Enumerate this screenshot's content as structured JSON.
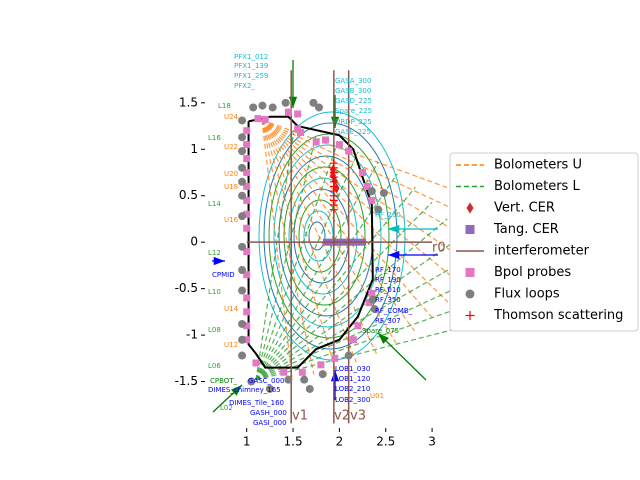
{
  "chart_data": {
    "type": "scatter",
    "xlim": [
      0.55,
      3.15
    ],
    "ylim": [
      -2.0,
      2.09
    ],
    "xticks": [
      1.0,
      1.5,
      2.0,
      2.5,
      3.0
    ],
    "yticks": [
      -1.5,
      -1.0,
      -0.5,
      0.0,
      0.5,
      1.0,
      1.5
    ],
    "wall": {
      "x": [
        1.02,
        1.25,
        1.45,
        1.55,
        2.0,
        2.15,
        2.35,
        2.36,
        2.2,
        2.0,
        1.75,
        1.55,
        1.35,
        1.2,
        1.1,
        1.02,
        1.02
      ],
      "y": [
        1.3,
        1.35,
        1.35,
        1.25,
        1.15,
        1.0,
        0.4,
        -0.4,
        -0.8,
        -1.05,
        -1.15,
        -1.35,
        -1.35,
        -1.35,
        -1.2,
        -1.1,
        1.3
      ]
    },
    "series": [
      {
        "name": "Bolometers U",
        "color": "#ff7f0e",
        "marker": "dashed"
      },
      {
        "name": "Bolometers L",
        "color": "#2ca02c",
        "marker": "dashed"
      },
      {
        "name": "Vert. CER",
        "color": "#d62728",
        "marker": "diamond",
        "x": [
          1.93,
          1.93,
          1.95,
          1.97
        ],
        "y": [
          0.78,
          0.72,
          0.66,
          0.58
        ]
      },
      {
        "name": "Tang. CER",
        "color": "#9467bd",
        "marker": "square",
        "x": [
          1.86,
          1.92,
          1.98,
          2.05,
          2.12,
          2.18,
          2.25
        ],
        "y": [
          0,
          0,
          0,
          0,
          0,
          0,
          0
        ]
      },
      {
        "name": "interferometer",
        "color": "#8c564b",
        "marker": "line",
        "x": [
          1.48,
          1.94,
          2.1,
          1.0
        ],
        "y": [
          1.85,
          1.85,
          1.85,
          0
        ],
        "x2": [
          1.48,
          1.94,
          2.1,
          3.0
        ],
        "y2": [
          -1.95,
          -1.95,
          -1.95,
          0
        ]
      },
      {
        "name": "Bpol probes",
        "color": "#e377c2",
        "marker": "square",
        "x": [
          1.0,
          1.0,
          1.0,
          1.0,
          1.0,
          1.0,
          1.0,
          1.0,
          1.0,
          1.0,
          1.0,
          1.0,
          1.0,
          1.0,
          1.12,
          1.2,
          1.45,
          1.55,
          1.55,
          1.58,
          1.75,
          1.85,
          2.0,
          2.1,
          2.25,
          2.3,
          2.35,
          2.35,
          2.32,
          2.2,
          2.15,
          1.95,
          1.8,
          1.6,
          1.4,
          1.1
        ],
        "y": [
          1.2,
          1.05,
          0.9,
          0.75,
          0.6,
          0.45,
          0.3,
          0.15,
          -0.1,
          -0.35,
          -0.6,
          -0.75,
          -0.9,
          -1.05,
          1.33,
          1.32,
          1.4,
          1.38,
          1.22,
          1.18,
          1.08,
          1.1,
          1.05,
          0.98,
          0.75,
          0.6,
          0.45,
          -0.55,
          -0.65,
          -0.9,
          -1.05,
          -1.25,
          -1.32,
          -1.4,
          -1.4,
          -1.3
        ]
      },
      {
        "name": "Flux loops",
        "color": "#7f7f7f",
        "marker": "circle",
        "x": [
          0.95,
          0.95,
          0.95,
          0.95,
          0.95,
          0.95,
          0.95,
          0.95,
          0.95,
          0.95,
          0.95,
          0.95,
          0.95,
          1.07,
          1.17,
          1.28,
          1.42,
          1.72,
          1.78,
          2.35,
          2.48,
          2.42,
          1.05,
          1.25,
          1.45,
          1.62,
          1.68,
          1.82,
          2.1,
          2.36,
          2.38
        ],
        "y": [
          1.31,
          1.13,
          0.98,
          0.8,
          0.65,
          0.5,
          0.28,
          -0.05,
          -0.3,
          -0.52,
          -0.88,
          -1.05,
          -1.22,
          1.45,
          1.47,
          1.45,
          1.5,
          1.5,
          1.45,
          0.55,
          0.53,
          0.35,
          -1.5,
          -1.58,
          -1.48,
          -1.48,
          -1.58,
          -1.42,
          -1.22,
          -0.62,
          -0.72
        ]
      },
      {
        "name": "Thomson scattering",
        "color": "#ff0000",
        "marker": "plus",
        "x": [
          1.94,
          1.94,
          1.94,
          1.94,
          1.94,
          1.94,
          1.94,
          1.94,
          1.94,
          1.94,
          1.94
        ],
        "y": [
          0.35,
          0.4,
          0.45,
          0.5,
          0.55,
          0.6,
          0.65,
          0.7,
          0.75,
          0.8,
          0.85
        ]
      }
    ],
    "chord_labels": [
      {
        "text": "v1",
        "color": "#8c564b"
      },
      {
        "text": "v2",
        "color": "#8c564b"
      },
      {
        "text": "v3",
        "color": "#8c564b"
      },
      {
        "text": "r0",
        "color": "#8c564b"
      }
    ],
    "annotations": [
      {
        "text": "PFX1_012",
        "color": "#17becf"
      },
      {
        "text": "PFX1_139",
        "color": "#17becf"
      },
      {
        "text": "PFX1_259",
        "color": "#17becf"
      },
      {
        "text": "PFX2_",
        "color": "#17becf"
      },
      {
        "text": "GASA_300",
        "color": "#17becf"
      },
      {
        "text": "GASB_300",
        "color": "#17becf"
      },
      {
        "text": "GASD_225",
        "color": "#17becf"
      },
      {
        "text": "Spare_225",
        "color": "#17becf"
      },
      {
        "text": "DRDP_225",
        "color": "#17becf"
      },
      {
        "text": "GASE_225",
        "color": "#17becf"
      },
      {
        "text": "RF_260",
        "color": "#17becf"
      },
      {
        "text": "RF_170",
        "color": "#0000ff"
      },
      {
        "text": "RF_190",
        "color": "#0000ff"
      },
      {
        "text": "RF_010",
        "color": "#0000ff"
      },
      {
        "text": "RF_350",
        "color": "#0000ff"
      },
      {
        "text": "RF_COMB_",
        "color": "#0000ff"
      },
      {
        "text": "RF_307",
        "color": "#0000ff"
      },
      {
        "text": "Spare_075",
        "color": "#008000"
      },
      {
        "text": "LOB1_030",
        "color": "#0000ff"
      },
      {
        "text": "LOB1_120",
        "color": "#0000ff"
      },
      {
        "text": "LOB2_210",
        "color": "#0000ff"
      },
      {
        "text": "LOB2_300",
        "color": "#0000ff"
      },
      {
        "text": "GASC_000",
        "color": "#0000ff"
      },
      {
        "text": "DIMES_chimney_165",
        "color": "#0000ff"
      },
      {
        "text": "DIMES_Tile_160",
        "color": "#0000ff"
      },
      {
        "text": "GASH_000",
        "color": "#0000ff"
      },
      {
        "text": "GASI_000",
        "color": "#0000ff"
      },
      {
        "text": "CPBOT_",
        "color": "#008000"
      },
      {
        "text": "CPMID",
        "color": "#0000ff"
      },
      {
        "text": "L18",
        "color": "#2ca02c"
      },
      {
        "text": "L16",
        "color": "#2ca02c"
      },
      {
        "text": "L14",
        "color": "#2ca02c"
      },
      {
        "text": "L12",
        "color": "#2ca02c"
      },
      {
        "text": "L10",
        "color": "#2ca02c"
      },
      {
        "text": "L08",
        "color": "#2ca02c"
      },
      {
        "text": "L06",
        "color": "#2ca02c"
      },
      {
        "text": "L02",
        "color": "#2ca02c"
      },
      {
        "text": "U24",
        "color": "#ff7f0e"
      },
      {
        "text": "U22",
        "color": "#ff7f0e"
      },
      {
        "text": "U20",
        "color": "#ff7f0e"
      },
      {
        "text": "U18",
        "color": "#ff7f0e"
      },
      {
        "text": "U16",
        "color": "#ff7f0e"
      },
      {
        "text": "U14",
        "color": "#ff7f0e"
      },
      {
        "text": "U12",
        "color": "#ff7f0e"
      },
      {
        "text": "U01",
        "color": "#ff7f0e"
      }
    ]
  }
}
